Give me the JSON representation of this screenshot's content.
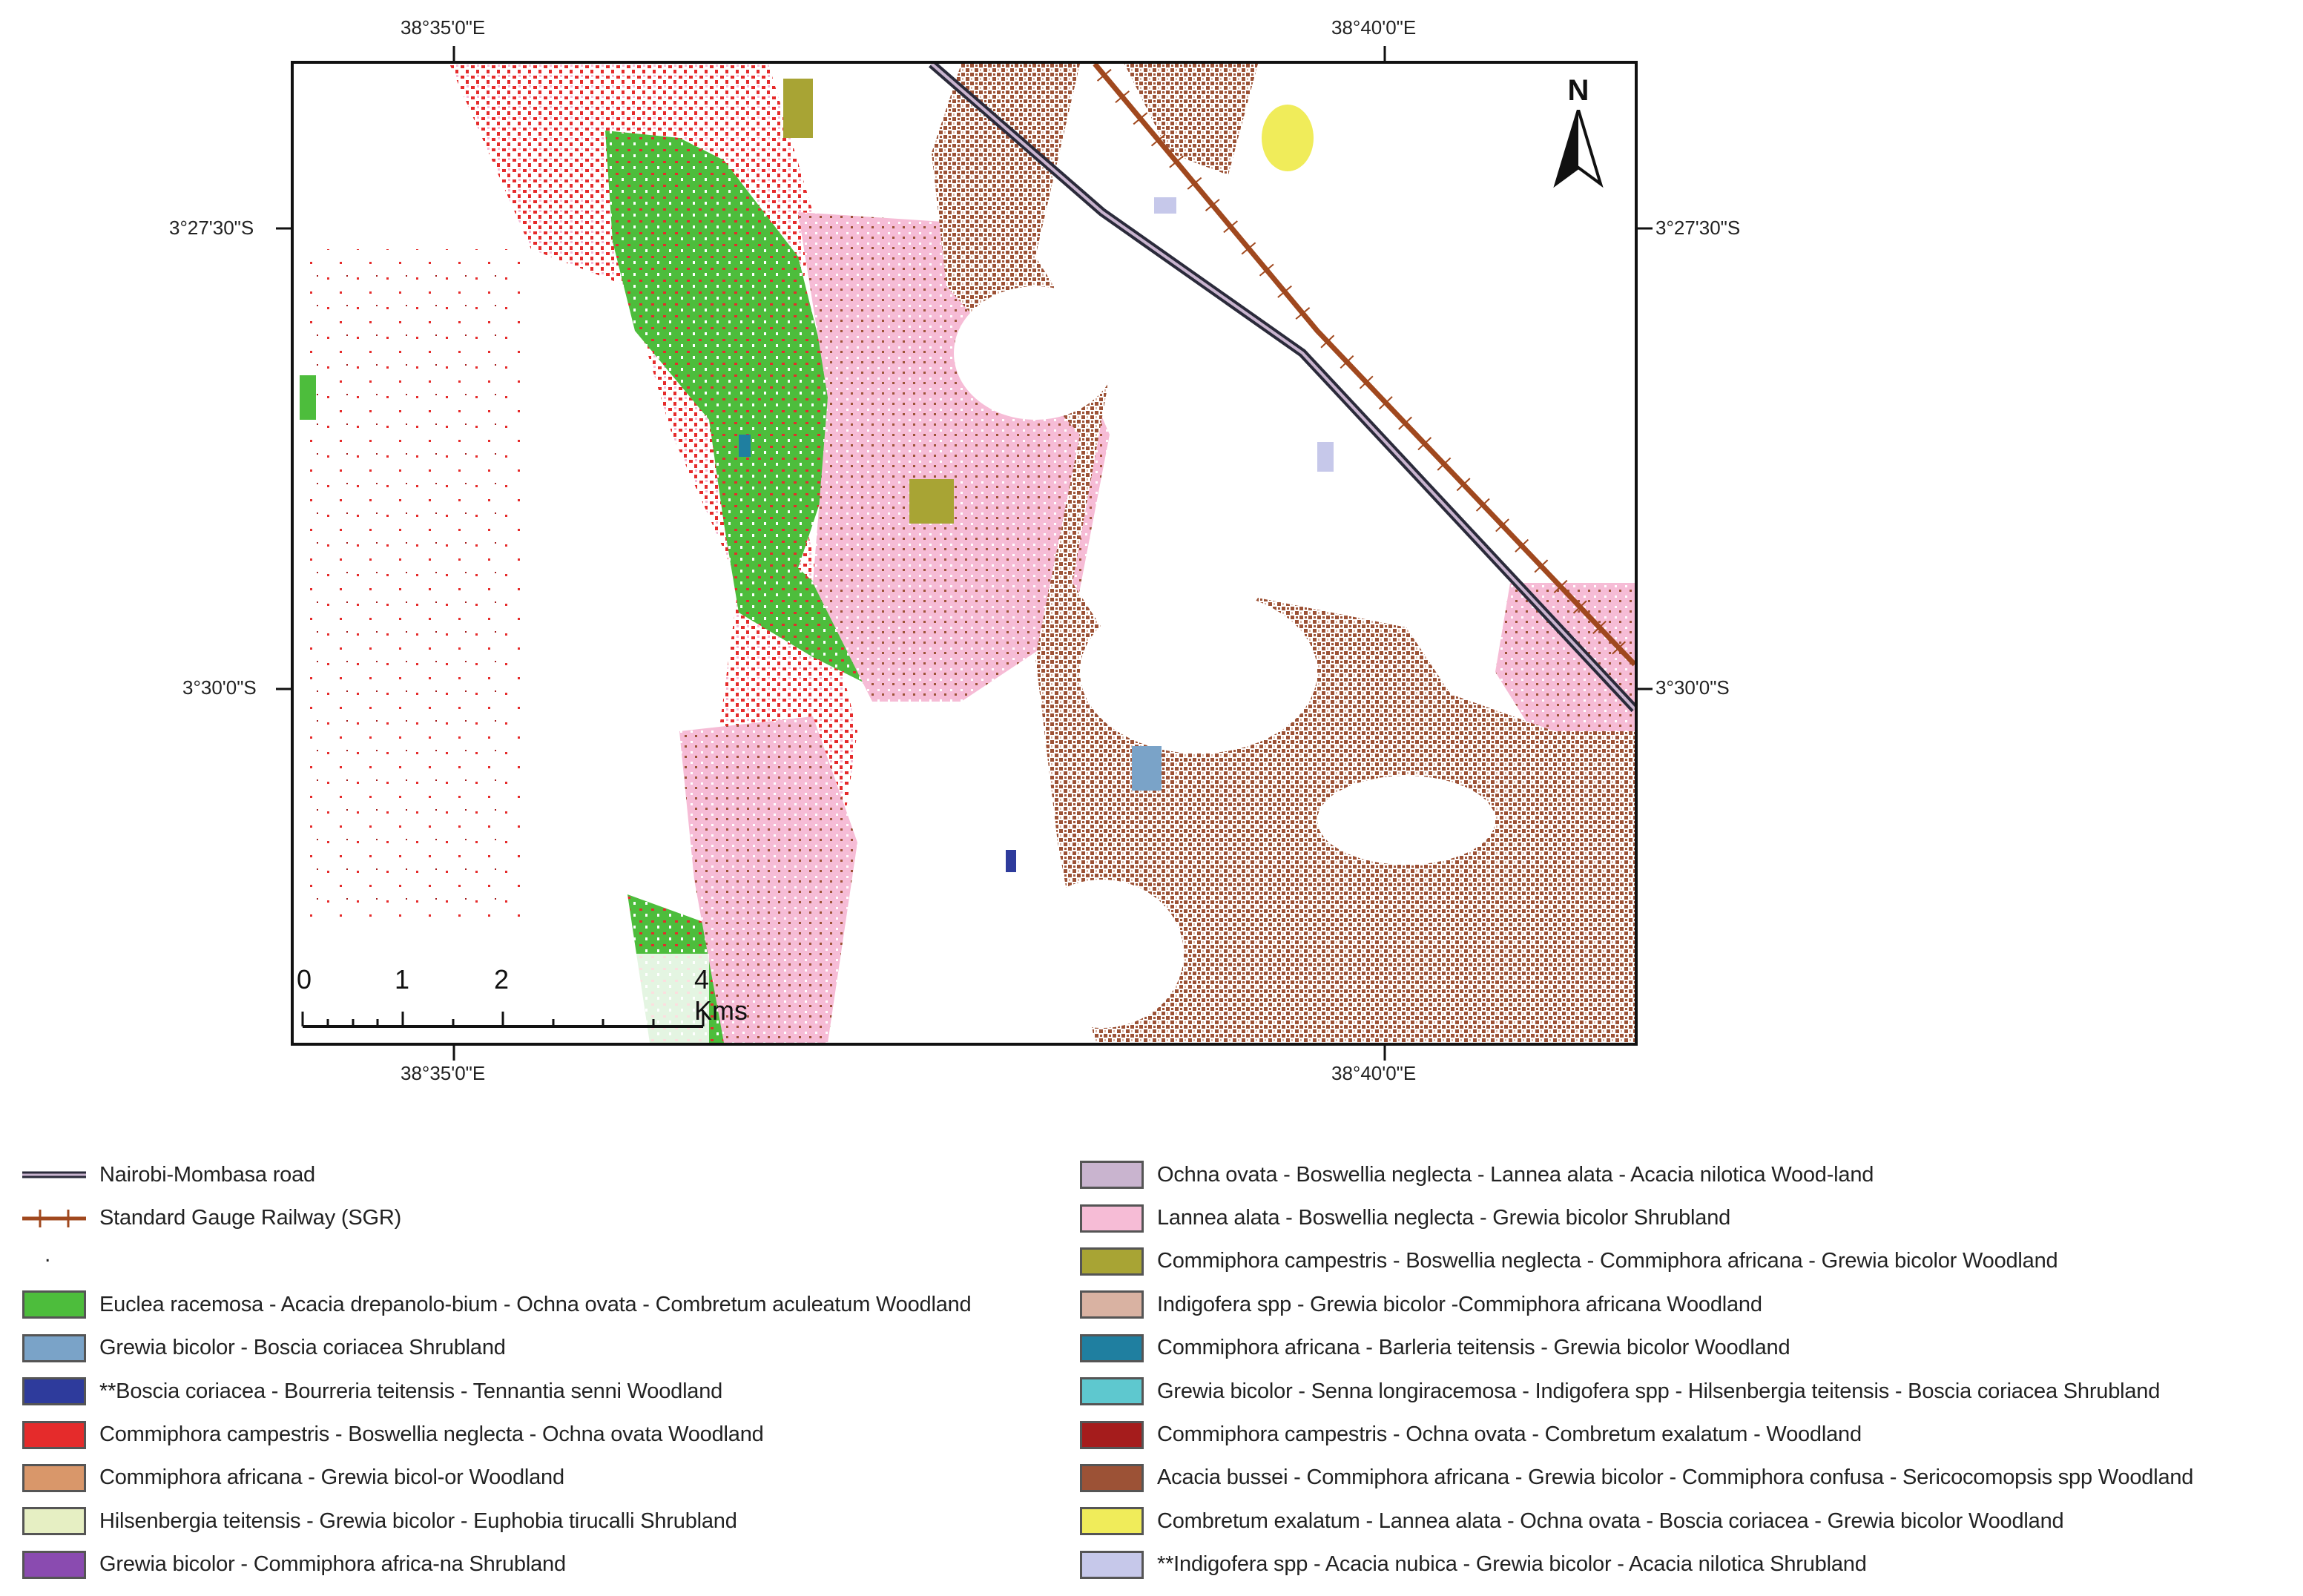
{
  "map": {
    "coordinates": {
      "lon_left": "38°35'0\"E",
      "lon_right": "38°40'0\"E",
      "lat_top": "3°27'30\"S",
      "lat_bottom": "3°30'0\"S"
    },
    "north_label": "N",
    "scale": {
      "tick_labels": [
        "0",
        "1",
        "2",
        "4 Kms"
      ]
    }
  },
  "legend": {
    "lines": [
      {
        "label": "Nairobi-Mombasa road",
        "icon": "road-line-icon",
        "color": "#5a3a3a"
      },
      {
        "label": "Standard Gauge Railway (SGR)",
        "icon": "railway-line-icon",
        "color": "#a0481e"
      }
    ],
    "dot": ".",
    "left_classes": [
      {
        "label": "Euclea racemosa - Acacia drepanolo-bium - Ochna ovata - Combretum aculeatum Woodland",
        "color": "#4dbd3c"
      },
      {
        "label": "Grewia bicolor - Boscia coriacea Shrubland",
        "color": "#7aa3c8"
      },
      {
        "label": "**Boscia coriacea - Bourreria teitensis - Tennantia senni Woodland",
        "color": "#2e3b9c"
      },
      {
        "label": "Commiphora campestris - Boswellia neglecta - Ochna ovata Woodland",
        "color": "#e52b2b"
      },
      {
        "label": "Commiphora africana - Grewia bicol-or Woodland",
        "color": "#d9976a"
      },
      {
        "label": "Hilsenbergia teitensis - Grewia bicolor - Euphobia tirucalli Shrubland",
        "color": "#e6efc3"
      },
      {
        "label": "Grewia bicolor - Commiphora africa-na Shrubland",
        "color": "#8a4bb0"
      }
    ],
    "right_classes": [
      {
        "label": "Ochna ovata - Boswellia neglecta - Lannea alata - Acacia nilotica Wood-land",
        "color": "#c9b4cf"
      },
      {
        "label": "Lannea alata - Boswellia neglecta - Grewia bicolor Shrubland",
        "color": "#f6bcd6"
      },
      {
        "label": "Commiphora campestris - Boswellia neglecta - Commiphora africana - Grewia bicolor Woodland",
        "color": "#a8a434"
      },
      {
        "label": "Indigofera spp - Grewia bicolor -Commiphora africana Woodland",
        "color": "#d9b2a2"
      },
      {
        "label": "Commiphora africana - Barleria teitensis - Grewia bicolor Woodland",
        "color": "#1f7fa0"
      },
      {
        "label": "Grewia bicolor - Senna longiracemosa - Indigofera spp - Hilsenbergia teitensis - Boscia coriacea Shrubland",
        "color": "#5ec8cf"
      },
      {
        "label": "Commiphora campestris - Ochna ovata - Combretum exalatum - Woodland",
        "color": "#a51c1c"
      },
      {
        "label": "Acacia bussei - Commiphora africana - Grewia bicolor - Commiphora confusa - Sericocomopsis spp Woodland",
        "color": "#9c5236"
      },
      {
        "label": "Combretum exalatum - Lannea alata - Ochna ovata - Boscia coriacea - Grewia bicolor Woodland",
        "color": "#f0ec5a"
      },
      {
        "label": "**Indigofera spp - Acacia nubica - Grewia bicolor - Acacia nilotica Shrubland",
        "color": "#c6c8ea"
      }
    ]
  }
}
